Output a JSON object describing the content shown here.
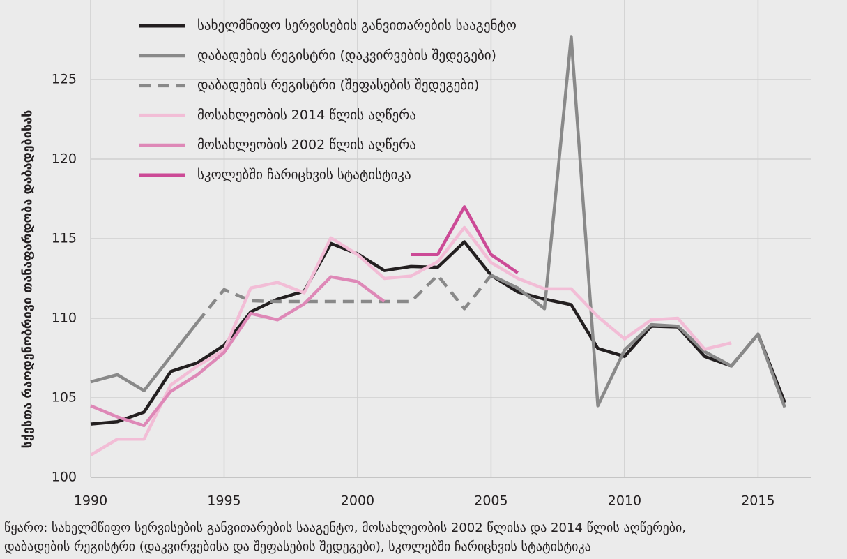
{
  "chart_data": {
    "type": "line",
    "ylabel": "სქესთა რაოდენობრივი თანაფარდობა დაბადებისას",
    "x": [
      1990,
      1991,
      1992,
      1993,
      1994,
      1995,
      1996,
      1997,
      1998,
      1999,
      2000,
      2001,
      2002,
      2003,
      2004,
      2005,
      2006,
      2007,
      2008,
      2009,
      2010,
      2011,
      2012,
      2013,
      2014,
      2015,
      2016
    ],
    "series": [
      {
        "name": "სახელმწიფო სერვისების განვითარების სააგენტო",
        "color": "#231f20",
        "style": "solid",
        "values": [
          103.35,
          103.5,
          104.1,
          106.65,
          107.2,
          108.3,
          110.4,
          111.2,
          111.7,
          114.7,
          114.05,
          113.0,
          113.25,
          113.2,
          114.8,
          112.7,
          111.65,
          111.2,
          110.85,
          108.1,
          107.6,
          109.5,
          109.45,
          107.6,
          107.0,
          109.0,
          104.7
        ]
      },
      {
        "name": "დაბადების რეგისტრი (დაკვირვების შედეგები)",
        "color": "#898989",
        "style": "solid",
        "values": [
          106.0,
          106.45,
          105.45,
          107.6,
          109.75,
          null,
          null,
          null,
          null,
          null,
          null,
          null,
          null,
          null,
          null,
          112.7,
          111.9,
          110.6,
          127.7,
          104.5,
          108.0,
          109.6,
          109.5,
          107.9,
          107.0,
          109.0,
          104.4
        ]
      },
      {
        "name": "დაბადების რეგისტრი (შეფასების შედეგები)",
        "color": "#898989",
        "style": "dashed",
        "values": [
          null,
          null,
          null,
          null,
          109.75,
          111.8,
          111.1,
          111.05,
          111.05,
          111.05,
          111.05,
          111.05,
          111.05,
          112.7,
          110.6,
          112.7,
          null,
          null,
          null,
          null,
          null,
          null,
          null,
          null,
          null,
          null,
          null
        ]
      },
      {
        "name": "მოსახლეობის 2014 წლის აღწერა",
        "color": "#f2bdd6",
        "style": "solid",
        "values": [
          101.4,
          102.4,
          102.4,
          105.8,
          107.0,
          108.0,
          111.9,
          112.25,
          111.6,
          115.05,
          114.0,
          112.5,
          112.65,
          113.55,
          115.7,
          113.5,
          112.5,
          111.85,
          111.85,
          110.1,
          108.7,
          109.9,
          110.0,
          108.05,
          108.45,
          null,
          null
        ]
      },
      {
        "name": "მოსახლეობის 2002 წლის აღწერა",
        "color": "#de88b7",
        "style": "solid",
        "values": [
          104.5,
          103.8,
          103.25,
          105.4,
          106.45,
          107.85,
          110.3,
          109.9,
          110.9,
          112.6,
          112.3,
          111.05,
          null,
          null,
          null,
          null,
          null,
          null,
          null,
          null,
          null,
          null,
          null,
          null,
          null,
          null,
          null
        ]
      },
      {
        "name": "სკოლებში ჩარიცხვის სტატისტიკა",
        "color": "#cc4a96",
        "style": "solid",
        "values": [
          null,
          null,
          null,
          null,
          null,
          null,
          null,
          null,
          null,
          null,
          null,
          null,
          114.0,
          114.0,
          117.0,
          114.0,
          112.85,
          null,
          null,
          null,
          null,
          null,
          null,
          null,
          null,
          null,
          null
        ]
      }
    ],
    "xlim": [
      1990,
      2017
    ],
    "xticks": [
      1990,
      1995,
      2000,
      2005,
      2010,
      2015
    ],
    "ylim": [
      100,
      130
    ],
    "yticks": [
      100,
      105,
      110,
      115,
      120,
      125
    ],
    "grid": true,
    "legend": "upper left",
    "source": [
      "წყარო: სახელმწიფო სერვისების განვითარების სააგენტო, მოსახლეობის 2002 წლისა და 2014 წლის აღწერები,",
      "დაბადების რეგისტრი (დაკვირვებისა და შეფასების შედეგები), სკოლებში ჩარიცხვის სტატისტიკა"
    ]
  }
}
